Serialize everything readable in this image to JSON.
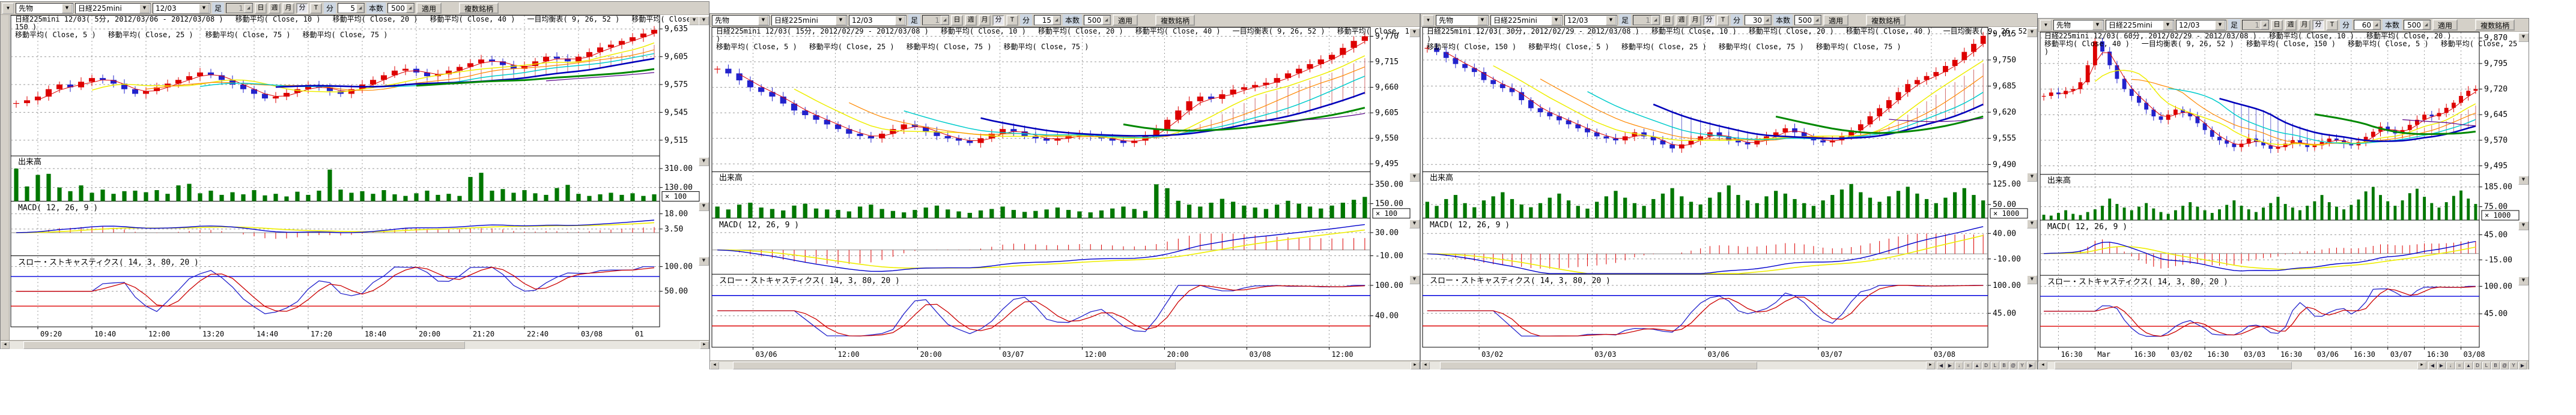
{
  "toolbar_labels": {
    "window_menu": "▼",
    "instrument": "先物",
    "symbol": "日経225mini",
    "contract": "12/03",
    "ashi": "足",
    "ashi_value": "1",
    "periods": [
      "日",
      "週",
      "月",
      "分",
      "T"
    ],
    "min_label": "分",
    "bars_label": "本数",
    "apply": "適用",
    "multi": "複数銘柄"
  },
  "pane_labels": {
    "volume": "出来高",
    "macd": "MACD( 12, 26, 9 )",
    "stoch": "スロー・ストキャスティクス( 14, 3, 80, 20 )"
  },
  "colors": {
    "candle_up": "#dd0000",
    "candle_down": "#2222cc",
    "volume_bar": "#007700",
    "macd_line": "#0000cc",
    "macd_signal": "#eeee00",
    "macd_hist": "#dd0000",
    "stoch_k": "#2222cc",
    "stoch_d": "#cc0000",
    "band_upper": "#0000dd",
    "band_lower": "#dd0000",
    "grid": "#999999",
    "ma_colors": [
      "#dd0000",
      "#eeee00",
      "#ff8800",
      "#00cccc",
      "#0000bb",
      "#008800",
      "#550088"
    ]
  },
  "panels": [
    {
      "minute": "5",
      "bars": "500",
      "legend_rows": [
        [
          "日経225mini 12/03( 5分, 2012/03/06 - 2012/03/08 )",
          "移動平均( Close, 10 )",
          "移動平均( Close, 20 )",
          "移動平均( Close, 40 )",
          "一目均衡表( 9, 26, 52 )",
          "移動平均( Close, 150 )"
        ],
        [
          "移動平均( Close, 5 )",
          "移動平均( Close, 25 )",
          "移動平均( Close, 75 )",
          "移動平均( Close, 75 )"
        ]
      ]
    },
    {
      "minute": "15",
      "bars": "500",
      "legend_rows": [
        [
          "日経225mini 12/03( 15分, 2012/02/29 - 2012/03/08 )",
          "移動平均( Close, 10 )",
          "移動平均( Close, 20 )",
          "移動平均( Close, 40 )",
          "一目均衡表( 9, 26, 52 )",
          "移動平均( Close, 150 )"
        ],
        [
          "移動平均( Close, 5 )",
          "移動平均( Close, 25 )",
          "移動平均( Close, 75 )",
          "移動平均( Close, 75 )"
        ]
      ]
    },
    {
      "minute": "30",
      "bars": "500",
      "legend_rows": [
        [
          "日経225mini 12/03( 30分, 2012/02/29 - 2012/03/08 )",
          "移動平均( Close, 10 )",
          "移動平均( Close, 20 )",
          "移動平均( Close, 40 )",
          "一目均衡表( 9, 26, 52 )"
        ],
        [
          "移動平均( Close, 150 )",
          "移動平均( Close, 5 )",
          "移動平均( Close, 25 )",
          "移動平均( Close, 75 )",
          "移動平均( Close, 75 )"
        ]
      ]
    },
    {
      "minute": "60",
      "bars": "500",
      "legend_rows": [
        [
          "日経225mini 12/03( 60分, 2012/02/29 - 2012/03/08 )",
          "移動平均( Close, 10 )",
          "移動平均( Close, 20 )"
        ],
        [
          "移動平均( Close, 40 )",
          "一目均衡表( 9, 26, 52 )",
          "移動平均( Close, 150 )",
          "移動平均( Close, 5 )",
          "移動平均( Close, 25 )"
        ]
      ]
    }
  ],
  "scroll_tools": [
    "◀",
    "▶",
    "↓",
    "=",
    "▲",
    "D",
    "L",
    "B",
    "@",
    "Y",
    "▶"
  ],
  "chart_data": [
    {
      "type": "candlestick",
      "title": "日経225mini 12/03( 5分, 2012/03/06 - 2012/03/08 )",
      "price": {
        "tick_labels": [
          "9,635",
          "9,605",
          "9,575",
          "9,545",
          "9,515"
        ],
        "tick_values": [
          9635,
          9605,
          9575,
          9545,
          9515
        ],
        "range": [
          9498,
          9650
        ]
      },
      "volume": {
        "tick_labels": [
          "310.00",
          "130.00"
        ],
        "tick_values": [
          310,
          130
        ],
        "range": [
          0,
          430
        ],
        "multiplier": "× 100"
      },
      "macd": {
        "tick_labels": [
          "18.00",
          "3.50"
        ],
        "tick_values": [
          18,
          3.5
        ],
        "range": [
          -22,
          30
        ]
      },
      "stoch": {
        "tick_labels": [
          "100.00",
          "50.00"
        ],
        "tick_values": [
          100,
          50
        ],
        "range": [
          -22,
          122
        ],
        "upper_band": 80,
        "lower_band": 20
      },
      "times": [
        "09:20",
        "10:40",
        "12:00",
        "13:20",
        "14:40",
        "17:20",
        "18:40",
        "20:00",
        "21:20",
        "22:40",
        "03/08",
        "01"
      ],
      "closes": [
        9555,
        9558,
        9562,
        9570,
        9575,
        9572,
        9578,
        9582,
        9580,
        9576,
        9570,
        9565,
        9568,
        9572,
        9576,
        9580,
        9584,
        9588,
        9585,
        9580,
        9575,
        9570,
        9565,
        9560,
        9562,
        9566,
        9570,
        9574,
        9572,
        9568,
        9565,
        9570,
        9575,
        9580,
        9585,
        9590,
        9592,
        9588,
        9584,
        9586,
        9590,
        9594,
        9598,
        9602,
        9600,
        9596,
        9592,
        9595,
        9600,
        9605,
        9603,
        9600,
        9605,
        9610,
        9615,
        9618,
        9622,
        9626,
        9630,
        9634
      ],
      "volumes": [
        310,
        140,
        250,
        260,
        130,
        95,
        150,
        80,
        110,
        70,
        95,
        100,
        85,
        105,
        70,
        150,
        165,
        75,
        100,
        60,
        85,
        65,
        105,
        55,
        70,
        45,
        90,
        60,
        100,
        300,
        110,
        80,
        95,
        70,
        105,
        65,
        50,
        75,
        100,
        60,
        70,
        50,
        230,
        270,
        100,
        115,
        80,
        105,
        75,
        60,
        125,
        155,
        70,
        50,
        65,
        80,
        60,
        75,
        50,
        65
      ]
    },
    {
      "type": "candlestick",
      "title": "日経225mini 12/03( 15分, 2012/02/29 - 2012/03/08 )",
      "price": {
        "tick_labels": [
          "9,770",
          "9,715",
          "9,660",
          "9,605",
          "9,550",
          "9,495"
        ],
        "tick_values": [
          9770,
          9715,
          9660,
          9605,
          9550,
          9495
        ],
        "range": [
          9478,
          9790
        ]
      },
      "volume": {
        "tick_labels": [
          "350.00",
          "150.00"
        ],
        "tick_values": [
          350,
          150
        ],
        "range": [
          0,
          480
        ],
        "multiplier": "× 100"
      },
      "macd": {
        "tick_labels": [
          "30.00",
          "-10.00"
        ],
        "tick_values": [
          30,
          -10
        ],
        "range": [
          -42,
          55
        ]
      },
      "stoch": {
        "tick_labels": [
          "100.00",
          "40.00"
        ],
        "tick_values": [
          100,
          40
        ],
        "range": [
          -22,
          122
        ],
        "upper_band": 80,
        "lower_band": 20
      },
      "times": [
        "03/06",
        "12:00",
        "20:00",
        "03/07",
        "12:00",
        "20:00",
        "03/08",
        "12:00"
      ],
      "closes": [
        9700,
        9690,
        9675,
        9660,
        9650,
        9640,
        9625,
        9610,
        9600,
        9590,
        9580,
        9570,
        9560,
        9555,
        9550,
        9560,
        9570,
        9580,
        9575,
        9565,
        9555,
        9550,
        9545,
        9540,
        9550,
        9560,
        9570,
        9565,
        9555,
        9550,
        9545,
        9550,
        9555,
        9560,
        9555,
        9550,
        9545,
        9540,
        9545,
        9555,
        9570,
        9590,
        9610,
        9630,
        9640,
        9635,
        9645,
        9655,
        9660,
        9665,
        9670,
        9680,
        9690,
        9700,
        9710,
        9720,
        9730,
        9745,
        9760,
        9770
      ],
      "volumes": [
        120,
        90,
        140,
        160,
        110,
        95,
        80,
        130,
        150,
        100,
        90,
        85,
        70,
        120,
        140,
        95,
        75,
        60,
        85,
        110,
        130,
        90,
        70,
        55,
        80,
        95,
        120,
        85,
        65,
        75,
        90,
        110,
        85,
        70,
        60,
        80,
        100,
        120,
        95,
        75,
        350,
        310,
        180,
        140,
        120,
        160,
        200,
        170,
        130,
        110,
        95,
        140,
        180,
        150,
        120,
        100,
        130,
        160,
        190,
        220
      ]
    },
    {
      "type": "candlestick",
      "title": "日経225mini 12/03( 30分, 2012/02/29 - 2012/03/08 )",
      "price": {
        "tick_labels": [
          "9,815",
          "9,750",
          "9,685",
          "9,620",
          "9,555",
          "9,490"
        ],
        "tick_values": [
          9815,
          9750,
          9685,
          9620,
          9555,
          9490
        ],
        "range": [
          9472,
          9832
        ]
      },
      "volume": {
        "tick_labels": [
          "125.00",
          "50.00"
        ],
        "tick_values": [
          125,
          50
        ],
        "range": [
          0,
          170
        ],
        "multiplier": "× 1000"
      },
      "macd": {
        "tick_labels": [
          "40.00",
          "-10.00"
        ],
        "tick_values": [
          40,
          -10
        ],
        "range": [
          -40,
          70
        ]
      },
      "stoch": {
        "tick_labels": [
          "100.00",
          "45.00"
        ],
        "tick_values": [
          100,
          45
        ],
        "range": [
          -22,
          122
        ],
        "upper_band": 80,
        "lower_band": 20
      },
      "times": [
        "03/02",
        "03/03",
        "03/06",
        "03/07",
        "03/08"
      ],
      "closes": [
        9780,
        9770,
        9755,
        9740,
        9730,
        9720,
        9700,
        9690,
        9680,
        9670,
        9650,
        9630,
        9620,
        9610,
        9600,
        9590,
        9580,
        9570,
        9560,
        9555,
        9550,
        9560,
        9570,
        9560,
        9550,
        9540,
        9530,
        9540,
        9550,
        9560,
        9570,
        9560,
        9550,
        9545,
        9540,
        9550,
        9560,
        9570,
        9580,
        9570,
        9560,
        9550,
        9545,
        9550,
        9560,
        9575,
        9590,
        9610,
        9630,
        9650,
        9670,
        9690,
        9700,
        9710,
        9720,
        9735,
        9750,
        9770,
        9790,
        9810
      ],
      "volumes": [
        60,
        45,
        70,
        85,
        55,
        40,
        65,
        80,
        95,
        70,
        50,
        40,
        55,
        75,
        90,
        65,
        45,
        35,
        60,
        80,
        100,
        75,
        55,
        45,
        70,
        90,
        110,
        80,
        60,
        50,
        75,
        95,
        120,
        85,
        65,
        55,
        80,
        100,
        90,
        70,
        55,
        45,
        65,
        85,
        105,
        125,
        95,
        75,
        60,
        80,
        100,
        115,
        90,
        70,
        55,
        75,
        95,
        110,
        85,
        65
      ]
    },
    {
      "type": "candlestick",
      "title": "日経225mini 12/03( 60分, 2012/02/29 - 2012/03/08 )",
      "price": {
        "tick_labels": [
          "9,870",
          "9,795",
          "9,720",
          "9,645",
          "9,570",
          "9,495"
        ],
        "tick_values": [
          9870,
          9795,
          9720,
          9645,
          9570,
          9495
        ],
        "range": [
          9470,
          9888
        ]
      },
      "volume": {
        "tick_labels": [
          "185.00",
          "75.00"
        ],
        "tick_values": [
          185,
          75
        ],
        "range": [
          0,
          255
        ],
        "multiplier": "× 1000"
      },
      "macd": {
        "tick_labels": [
          "45.00",
          "-15.00"
        ],
        "tick_values": [
          45,
          -15
        ],
        "range": [
          -52,
          80
        ]
      },
      "stoch": {
        "tick_labels": [
          "100.00",
          "45.00"
        ],
        "tick_values": [
          100,
          45
        ],
        "range": [
          -22,
          122
        ],
        "upper_band": 80,
        "lower_band": 20
      },
      "times": [
        "16:30",
        "Mar",
        "16:30",
        "03/02",
        "16:30",
        "03/03",
        "16:30",
        "03/06",
        "16:30",
        "03/07",
        "16:30",
        "03/08"
      ],
      "closes": [
        9700,
        9710,
        9705,
        9715,
        9720,
        9740,
        9790,
        9860,
        9830,
        9790,
        9750,
        9720,
        9700,
        9680,
        9660,
        9640,
        9630,
        9645,
        9660,
        9650,
        9640,
        9620,
        9600,
        9580,
        9570,
        9560,
        9550,
        9560,
        9575,
        9565,
        9555,
        9545,
        9550,
        9560,
        9570,
        9560,
        9550,
        9555,
        9565,
        9575,
        9570,
        9560,
        9555,
        9565,
        9580,
        9595,
        9610,
        9600,
        9590,
        9600,
        9615,
        9630,
        9645,
        9640,
        9650,
        9665,
        9680,
        9700,
        9715,
        9720
      ],
      "volumes": [
        30,
        25,
        40,
        55,
        35,
        28,
        45,
        60,
        80,
        120,
        90,
        70,
        55,
        75,
        95,
        65,
        45,
        35,
        55,
        80,
        100,
        75,
        55,
        40,
        60,
        85,
        110,
        80,
        60,
        45,
        70,
        95,
        130,
        90,
        70,
        55,
        80,
        105,
        140,
        100,
        75,
        60,
        85,
        115,
        160,
        185,
        140,
        105,
        80,
        110,
        150,
        175,
        130,
        95,
        70,
        100,
        135,
        165,
        120,
        90
      ]
    }
  ]
}
